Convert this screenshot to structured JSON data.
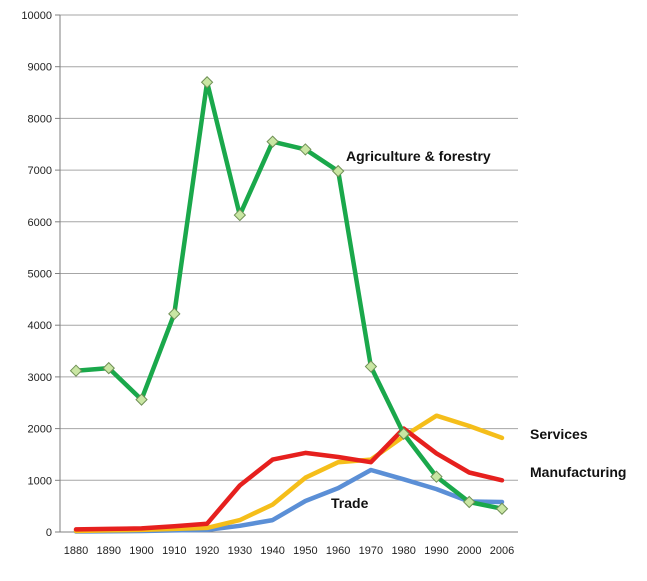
{
  "chart_data": {
    "type": "line",
    "title": "",
    "xlabel": "",
    "ylabel": "",
    "categories": [
      "1880",
      "1890",
      "1900",
      "1910",
      "1920",
      "1930",
      "1940",
      "1950",
      "1960",
      "1970",
      "1980",
      "1990",
      "2000",
      "2006"
    ],
    "ylim": [
      0,
      10000
    ],
    "yticks": [
      0,
      1000,
      2000,
      3000,
      4000,
      5000,
      6000,
      7000,
      8000,
      9000,
      10000
    ],
    "grid": "horizontal",
    "legend": "none (series labeled inline)",
    "series": [
      {
        "name": "Agriculture & forestry",
        "color": "#1aa84b",
        "markers": true,
        "values": [
          3120,
          3170,
          2560,
          4220,
          8700,
          6130,
          7550,
          7400,
          6980,
          3200,
          1900,
          1070,
          580,
          450
        ]
      },
      {
        "name": "Services",
        "color": "#f5be1a",
        "markers": false,
        "values": [
          20,
          30,
          40,
          60,
          80,
          230,
          530,
          1050,
          1350,
          1400,
          1850,
          2250,
          2050,
          1820
        ]
      },
      {
        "name": "Manufacturing",
        "color": "#e6201e",
        "markers": false,
        "values": [
          50,
          60,
          70,
          110,
          160,
          900,
          1400,
          1530,
          1450,
          1350,
          2000,
          1520,
          1150,
          1000
        ]
      },
      {
        "name": "Trade",
        "color": "#5b8fd6",
        "markers": false,
        "values": [
          10,
          15,
          20,
          30,
          40,
          120,
          230,
          600,
          850,
          1200,
          1020,
          830,
          590,
          580
        ]
      }
    ]
  }
}
